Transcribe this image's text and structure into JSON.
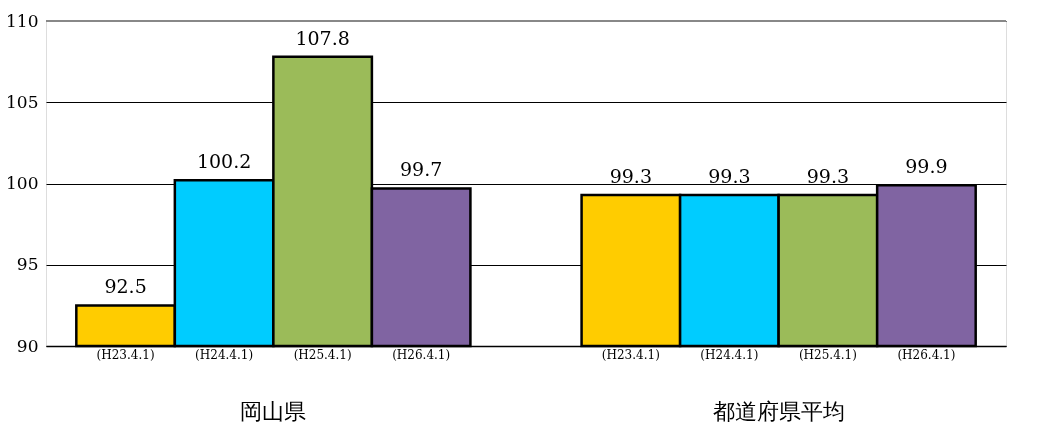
{
  "chart_data": {
    "type": "bar",
    "categories": [
      "岡山県",
      "都道府県平均"
    ],
    "series": [
      {
        "name": "(H23.4.1)",
        "color": "#ffcc00",
        "values": [
          92.5,
          99.3
        ]
      },
      {
        "name": "(H24.4.1)",
        "color": "#00ccff",
        "values": [
          100.2,
          99.3
        ]
      },
      {
        "name": "(H25.4.1)",
        "color": "#9bbb59",
        "values": [
          107.8,
          99.3
        ]
      },
      {
        "name": "(H26.4.1)",
        "color": "#8064a2",
        "values": [
          99.7,
          99.9
        ]
      }
    ],
    "ylim": [
      90,
      110
    ],
    "yticks": [
      90,
      95,
      100,
      105,
      110
    ],
    "grid": "y",
    "legend": false,
    "data_labels": true
  }
}
